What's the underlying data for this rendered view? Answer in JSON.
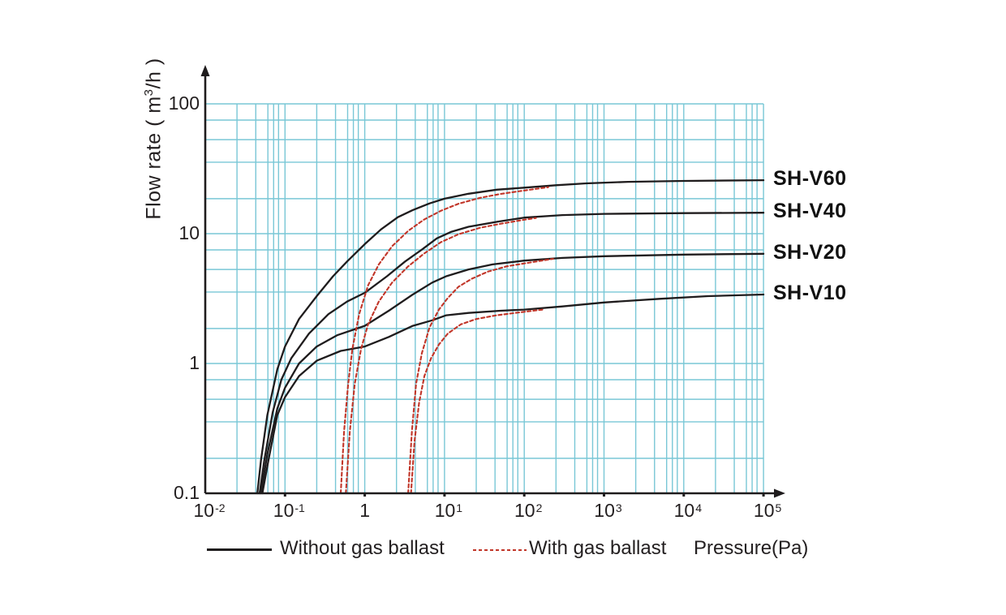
{
  "chart_data": {
    "type": "line",
    "title": "",
    "xlabel": "Pressure(Pa)",
    "ylabel": "Flow rate ( m3/h )",
    "ylabel_parts": {
      "pre": "Flow rate ( m",
      "sup": "3",
      "post": "/h )"
    },
    "xscale": "log",
    "yscale": "log",
    "xlim": [
      0.01,
      100000
    ],
    "ylim": [
      0.1,
      100
    ],
    "grid": true,
    "legend_position": "bottom",
    "legend": {
      "without": "Without gas ballast",
      "with": "With gas ballast"
    },
    "x_ticks": [
      {
        "base": "10",
        "exp": "-2",
        "value": 0.01
      },
      {
        "base": "10",
        "exp": "-1",
        "value": 0.1
      },
      {
        "base": "1",
        "exp": "",
        "value": 1
      },
      {
        "base": "10",
        "exp": "1",
        "value": 10
      },
      {
        "base": "10",
        "exp": "2",
        "value": 100
      },
      {
        "base": "10",
        "exp": "3",
        "value": 1000
      },
      {
        "base": "10",
        "exp": "4",
        "value": 10000
      },
      {
        "base": "10",
        "exp": "5",
        "value": 100000
      }
    ],
    "y_ticks": [
      {
        "label": "0.1",
        "value": 0.1
      },
      {
        "label": "1",
        "value": 1
      },
      {
        "label": "10",
        "value": 10
      },
      {
        "label": "100",
        "value": 100
      }
    ],
    "x_minor_multipliers": [
      2.5,
      4.3,
      6.1,
      7.2,
      8.3
    ],
    "y_minor_multipliers": [
      1.86,
      3.55,
      5.3,
      7.5
    ],
    "series": [
      {
        "name": "SH-V60",
        "variant": "without_gas_ballast",
        "label": true,
        "points": [
          [
            0.045,
            0.1
          ],
          [
            0.05,
            0.18
          ],
          [
            0.06,
            0.4
          ],
          [
            0.08,
            0.9
          ],
          [
            0.1,
            1.35
          ],
          [
            0.15,
            2.2
          ],
          [
            0.25,
            3.3
          ],
          [
            0.4,
            4.7
          ],
          [
            0.6,
            6.1
          ],
          [
            1,
            8.3
          ],
          [
            1.6,
            10.8
          ],
          [
            2.6,
            13.4
          ],
          [
            4,
            15.2
          ],
          [
            6.5,
            17.1
          ],
          [
            10,
            18.6
          ],
          [
            20,
            20.3
          ],
          [
            45,
            21.8
          ],
          [
            100,
            22.6
          ],
          [
            250,
            23.6
          ],
          [
            600,
            24.4
          ],
          [
            2000,
            25.1
          ],
          [
            10000,
            25.5
          ],
          [
            100000,
            25.8
          ]
        ]
      },
      {
        "name": "SH-V40",
        "variant": "without_gas_ballast",
        "label": true,
        "points": [
          [
            0.048,
            0.1
          ],
          [
            0.055,
            0.18
          ],
          [
            0.07,
            0.42
          ],
          [
            0.09,
            0.75
          ],
          [
            0.12,
            1.1
          ],
          [
            0.2,
            1.7
          ],
          [
            0.35,
            2.4
          ],
          [
            0.6,
            3.0
          ],
          [
            1,
            3.5
          ],
          [
            1.9,
            4.7
          ],
          [
            3.2,
            6.1
          ],
          [
            5.3,
            7.6
          ],
          [
            8,
            9.2
          ],
          [
            12,
            10.3
          ],
          [
            20,
            11.3
          ],
          [
            47,
            12.4
          ],
          [
            100,
            13.3
          ],
          [
            300,
            13.9
          ],
          [
            1000,
            14.2
          ],
          [
            10000,
            14.4
          ],
          [
            100000,
            14.5
          ]
        ]
      },
      {
        "name": "SH-V20",
        "variant": "without_gas_ballast",
        "label": true,
        "points": [
          [
            0.05,
            0.1
          ],
          [
            0.06,
            0.2
          ],
          [
            0.08,
            0.45
          ],
          [
            0.1,
            0.65
          ],
          [
            0.15,
            1.0
          ],
          [
            0.25,
            1.35
          ],
          [
            0.45,
            1.65
          ],
          [
            1,
            1.95
          ],
          [
            2,
            2.55
          ],
          [
            4,
            3.4
          ],
          [
            7,
            4.2
          ],
          [
            10.5,
            4.7
          ],
          [
            20,
            5.3
          ],
          [
            40,
            5.8
          ],
          [
            100,
            6.2
          ],
          [
            300,
            6.5
          ],
          [
            1000,
            6.7
          ],
          [
            10000,
            6.9
          ],
          [
            100000,
            7.0
          ]
        ]
      },
      {
        "name": "SH-V10",
        "variant": "without_gas_ballast",
        "label": true,
        "points": [
          [
            0.052,
            0.1
          ],
          [
            0.062,
            0.18
          ],
          [
            0.08,
            0.4
          ],
          [
            0.1,
            0.55
          ],
          [
            0.15,
            0.8
          ],
          [
            0.25,
            1.05
          ],
          [
            0.5,
            1.25
          ],
          [
            1,
            1.35
          ],
          [
            2,
            1.6
          ],
          [
            4,
            1.95
          ],
          [
            7,
            2.15
          ],
          [
            10.5,
            2.35
          ],
          [
            20,
            2.45
          ],
          [
            50,
            2.55
          ],
          [
            100,
            2.6
          ],
          [
            300,
            2.75
          ],
          [
            1000,
            2.95
          ],
          [
            5000,
            3.15
          ],
          [
            20000,
            3.3
          ],
          [
            100000,
            3.4
          ]
        ]
      },
      {
        "name": "SH-V60 gas ballast",
        "variant": "with_gas_ballast",
        "label": false,
        "points": [
          [
            0.5,
            0.1
          ],
          [
            0.55,
            0.3
          ],
          [
            0.62,
            0.7
          ],
          [
            0.7,
            1.3
          ],
          [
            0.85,
            2.4
          ],
          [
            1.1,
            4.0
          ],
          [
            1.5,
            5.8
          ],
          [
            2.2,
            8.0
          ],
          [
            3.5,
            10.5
          ],
          [
            5.5,
            12.8
          ],
          [
            9,
            15.0
          ],
          [
            15,
            17.0
          ],
          [
            28,
            18.9
          ],
          [
            50,
            20.2
          ],
          [
            100,
            21.5
          ],
          [
            200,
            22.8
          ]
        ]
      },
      {
        "name": "SH-V40 gas ballast",
        "variant": "with_gas_ballast",
        "label": false,
        "points": [
          [
            0.58,
            0.1
          ],
          [
            0.65,
            0.3
          ],
          [
            0.75,
            0.7
          ],
          [
            0.9,
            1.3
          ],
          [
            1.1,
            2.0
          ],
          [
            1.5,
            3.0
          ],
          [
            2.2,
            4.2
          ],
          [
            3.5,
            5.6
          ],
          [
            5.5,
            7.0
          ],
          [
            9,
            8.6
          ],
          [
            15,
            9.9
          ],
          [
            28,
            11.1
          ],
          [
            50,
            11.9
          ],
          [
            100,
            12.8
          ],
          [
            140,
            13.2
          ]
        ]
      },
      {
        "name": "SH-V20 gas ballast",
        "variant": "with_gas_ballast",
        "label": false,
        "points": [
          [
            3.5,
            0.1
          ],
          [
            3.9,
            0.3
          ],
          [
            4.4,
            0.7
          ],
          [
            5.2,
            1.2
          ],
          [
            6.5,
            1.9
          ],
          [
            8.5,
            2.6
          ],
          [
            11,
            3.2
          ],
          [
            15,
            3.9
          ],
          [
            22,
            4.5
          ],
          [
            35,
            5.1
          ],
          [
            60,
            5.6
          ],
          [
            100,
            5.9
          ],
          [
            230,
            6.4
          ]
        ]
      },
      {
        "name": "SH-V10 gas ballast",
        "variant": "with_gas_ballast",
        "label": false,
        "points": [
          [
            3.8,
            0.1
          ],
          [
            4.2,
            0.25
          ],
          [
            4.8,
            0.5
          ],
          [
            5.6,
            0.8
          ],
          [
            6.8,
            1.1
          ],
          [
            8.5,
            1.4
          ],
          [
            11,
            1.7
          ],
          [
            16,
            2.0
          ],
          [
            25,
            2.2
          ],
          [
            45,
            2.35
          ],
          [
            100,
            2.5
          ],
          [
            170,
            2.6
          ]
        ]
      }
    ]
  },
  "colors": {
    "grid": "#79c7d6",
    "without_gas_ballast": "#1f1c1d",
    "with_gas_ballast": "#c13528",
    "text": "#231f20"
  }
}
